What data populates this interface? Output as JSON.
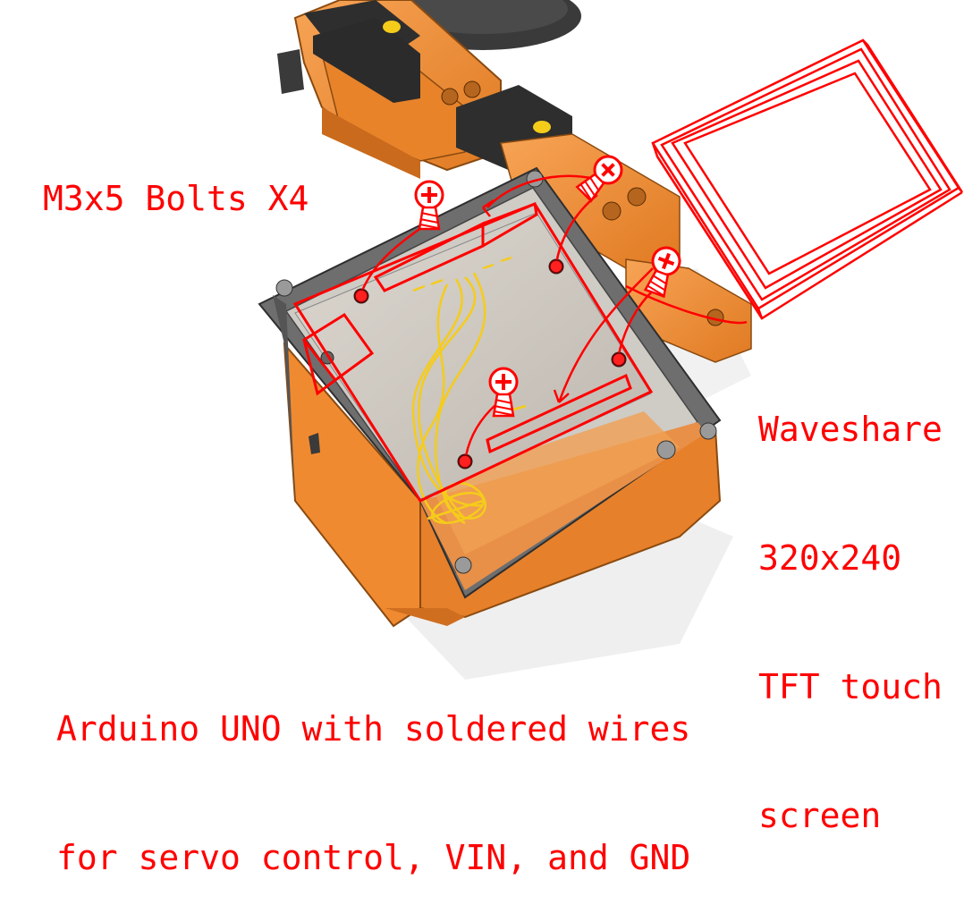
{
  "labels": {
    "bolts": "M3x5 Bolts X4",
    "screen": [
      "Waveshare",
      "320x240",
      "TFT touch",
      "screen"
    ],
    "arduino": [
      "Arduino UNO with soldered wires",
      "for servo control, VIN, and GND"
    ]
  },
  "colors": {
    "annotation": "#ff0000",
    "wire": "#f5cc1a",
    "enclosure_orange": "#f08a30",
    "enclosure_grey": "#6e6e6e",
    "bracket_black": "#2e2e2e",
    "board": "#cfcac3"
  },
  "icons": [
    "screw-icon",
    "screw-icon",
    "screw-icon",
    "screw-icon"
  ]
}
